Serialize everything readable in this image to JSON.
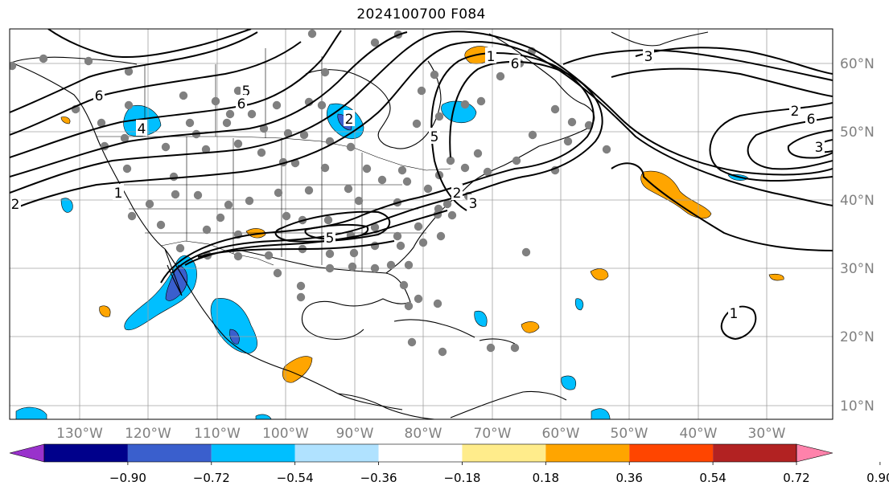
{
  "title": "2024100700 F084",
  "lon_labels": [
    "130°W",
    "120°W",
    "110°W",
    "100°W",
    "90°W",
    "80°W",
    "70°W",
    "60°W",
    "50°W",
    "40°W",
    "30°W"
  ],
  "lat_labels": [
    "60°N",
    "50°N",
    "40°N",
    "30°N",
    "20°N",
    "10°N"
  ],
  "colorbar": {
    "colors": [
      "#9932cc",
      "#00008b",
      "#3a5fcd",
      "#00bfff",
      "#b0e2ff",
      "#ffffff",
      "#ffec8b",
      "#ffa500",
      "#ff4500",
      "#b22222",
      "#ff82ab"
    ],
    "tick_labels": [
      "−0.90",
      "−0.72",
      "−0.54",
      "−0.36",
      "−0.18",
      "0.18",
      "0.36",
      "0.54",
      "0.72",
      "0.90"
    ]
  },
  "contour_labels": [
    "6",
    "5",
    "4",
    "1",
    "2",
    "6",
    "5",
    "3",
    "6",
    "5",
    "3",
    "1",
    "2",
    "6",
    "3",
    "2",
    "1",
    "2"
  ],
  "style": {
    "contour_color": "#000000",
    "station_color": "#808080",
    "grid_color": "#a0a0a0",
    "coast_color": "#000000"
  }
}
